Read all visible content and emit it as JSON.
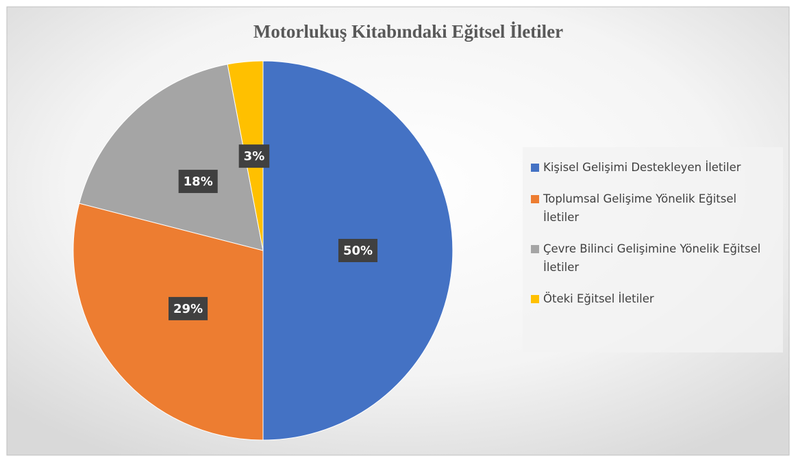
{
  "chart_data": {
    "type": "pie",
    "title": "Motorlukuş Kitabındaki Eğitsel İletiler",
    "categories": [
      "Kişisel Gelişimi Destekleyen İletiler",
      "Toplumsal Gelişime Yönelik Eğitsel İletiler",
      "Çevre Bilinci Gelişimine Yönelik Eğitsel İletiler",
      "Öteki Eğitsel İletiler"
    ],
    "values": [
      50,
      29,
      18,
      3
    ],
    "value_labels": [
      "50%",
      "29%",
      "18%",
      "3%"
    ],
    "colors": [
      "#4472c4",
      "#ed7d31",
      "#a5a5a5",
      "#ffc000"
    ],
    "legend": "right"
  }
}
